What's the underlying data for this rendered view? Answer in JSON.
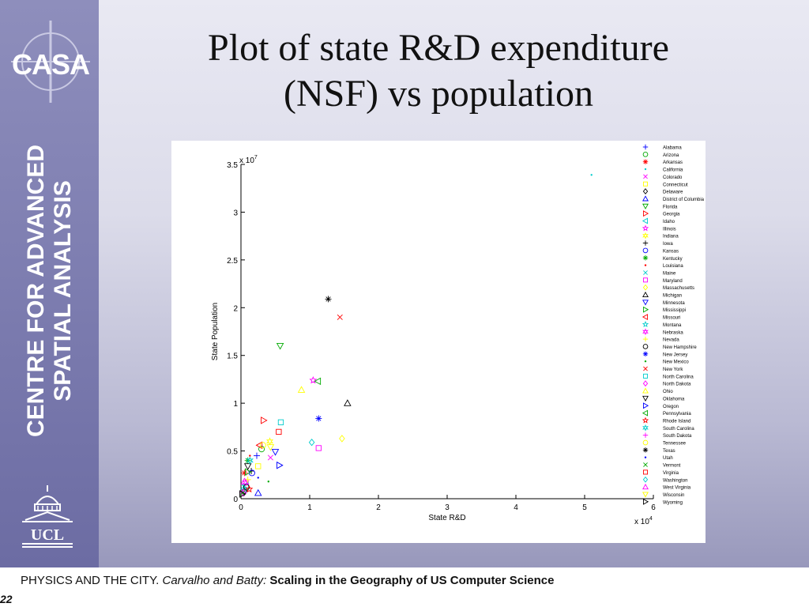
{
  "sidebar": {
    "logo_text": "CASA",
    "title_line1": "CENTRE FOR ADVANCED",
    "title_line2": "SPATIAL ANALYSIS",
    "ucl_logo_text": "UCL"
  },
  "slide": {
    "title_line1": "Plot of state R&D expenditure",
    "title_line2": "(NSF) vs population"
  },
  "footer": {
    "part1": "PHYSICS AND THE CITY.",
    "part2": "Carvalho and Batty:",
    "part3": "Scaling in the Geography of US Computer Science",
    "page_number": "22"
  },
  "chart_data": {
    "type": "scatter",
    "xlabel": "State R&D",
    "ylabel": "State Population",
    "x_multiplier": "x 10^4",
    "y_multiplier": "x 10^7",
    "xlim": [
      0,
      6
    ],
    "ylim": [
      0,
      3.5
    ],
    "x_ticks": [
      0,
      1,
      2,
      3,
      4,
      5,
      6
    ],
    "y_ticks": [
      0,
      0.5,
      1,
      1.5,
      2,
      2.5,
      3,
      3.5
    ],
    "legend_position": "right",
    "series": [
      {
        "name": "Alabama",
        "marker": "plus",
        "color": "#0000ff",
        "x": 0.23,
        "y": 0.45
      },
      {
        "name": "Arizona",
        "marker": "circle",
        "color": "#00aa00",
        "x": 0.3,
        "y": 0.52
      },
      {
        "name": "Arkansas",
        "marker": "star",
        "color": "#ff0000",
        "x": 0.05,
        "y": 0.27
      },
      {
        "name": "California",
        "marker": "dot",
        "color": "#00cccc",
        "x": 5.1,
        "y": 3.39
      },
      {
        "name": "Colorado",
        "marker": "x",
        "color": "#ff00ff",
        "x": 0.43,
        "y": 0.43
      },
      {
        "name": "Connecticut",
        "marker": "square",
        "color": "#ffff00",
        "x": 0.25,
        "y": 0.34
      },
      {
        "name": "Delaware",
        "marker": "diamond",
        "color": "#000000",
        "x": 0.05,
        "y": 0.08
      },
      {
        "name": "District of Columbia",
        "marker": "tri-up",
        "color": "#0000ff",
        "x": 0.25,
        "y": 0.06
      },
      {
        "name": "Florida",
        "marker": "tri-down",
        "color": "#00aa00",
        "x": 0.57,
        "y": 1.6
      },
      {
        "name": "Georgia",
        "marker": "tri-right",
        "color": "#ff0000",
        "x": 0.33,
        "y": 0.82
      },
      {
        "name": "Idaho",
        "marker": "tri-left",
        "color": "#00cccc",
        "x": 0.07,
        "y": 0.14
      },
      {
        "name": "Illinois",
        "marker": "pentagram",
        "color": "#ff00ff",
        "x": 1.05,
        "y": 1.24
      },
      {
        "name": "Indiana",
        "marker": "hexagram",
        "color": "#ffff00",
        "x": 0.42,
        "y": 0.6
      },
      {
        "name": "Iowa",
        "marker": "plus",
        "color": "#000000",
        "x": 0.15,
        "y": 0.29
      },
      {
        "name": "Kansas",
        "marker": "circle",
        "color": "#0000ff",
        "x": 0.16,
        "y": 0.27
      },
      {
        "name": "Kentucky",
        "marker": "star",
        "color": "#00aa00",
        "x": 0.1,
        "y": 0.4
      },
      {
        "name": "Louisiana",
        "marker": "dot",
        "color": "#ff0000",
        "x": 0.13,
        "y": 0.45
      },
      {
        "name": "Maine",
        "marker": "x",
        "color": "#00cccc",
        "x": 0.04,
        "y": 0.13
      },
      {
        "name": "Maryland",
        "marker": "square",
        "color": "#ff00ff",
        "x": 1.13,
        "y": 0.53
      },
      {
        "name": "Massachusetts",
        "marker": "diamond",
        "color": "#ffff00",
        "x": 1.47,
        "y": 0.63
      },
      {
        "name": "Michigan",
        "marker": "tri-up",
        "color": "#000000",
        "x": 1.55,
        "y": 1.0
      },
      {
        "name": "Minnesota",
        "marker": "tri-down",
        "color": "#0000ff",
        "x": 0.5,
        "y": 0.49
      },
      {
        "name": "Mississippi",
        "marker": "tri-right",
        "color": "#00aa00",
        "x": 0.1,
        "y": 0.28
      },
      {
        "name": "Missouri",
        "marker": "tri-left",
        "color": "#ff0000",
        "x": 0.27,
        "y": 0.56
      },
      {
        "name": "Montana",
        "marker": "pentagram",
        "color": "#00cccc",
        "x": 0.05,
        "y": 0.09
      },
      {
        "name": "Nebraska",
        "marker": "hexagram",
        "color": "#ff00ff",
        "x": 0.07,
        "y": 0.17
      },
      {
        "name": "Nevada",
        "marker": "plus",
        "color": "#ffff00",
        "x": 0.1,
        "y": 0.2
      },
      {
        "name": "New Hampshire",
        "marker": "circle",
        "color": "#000000",
        "x": 0.08,
        "y": 0.12
      },
      {
        "name": "New Jersey",
        "marker": "star",
        "color": "#0000ff",
        "x": 1.13,
        "y": 0.84
      },
      {
        "name": "New Mexico",
        "marker": "dot",
        "color": "#00aa00",
        "x": 0.4,
        "y": 0.18
      },
      {
        "name": "New York",
        "marker": "x",
        "color": "#ff0000",
        "x": 1.44,
        "y": 1.9
      },
      {
        "name": "North Carolina",
        "marker": "square",
        "color": "#00cccc",
        "x": 0.58,
        "y": 0.8
      },
      {
        "name": "North Dakota",
        "marker": "diamond",
        "color": "#ff00ff",
        "x": 0.04,
        "y": 0.06
      },
      {
        "name": "Ohio",
        "marker": "tri-up",
        "color": "#ffff00",
        "x": 0.88,
        "y": 1.14
      },
      {
        "name": "Oklahoma",
        "marker": "tri-down",
        "color": "#000000",
        "x": 0.1,
        "y": 0.34
      },
      {
        "name": "Oregon",
        "marker": "tri-right",
        "color": "#0000ff",
        "x": 0.56,
        "y": 0.35
      },
      {
        "name": "Pennsylvania",
        "marker": "tri-left",
        "color": "#00aa00",
        "x": 1.12,
        "y": 1.23
      },
      {
        "name": "Rhode Island",
        "marker": "pentagram",
        "color": "#ff0000",
        "x": 0.12,
        "y": 0.1
      },
      {
        "name": "South Carolina",
        "marker": "hexagram",
        "color": "#00cccc",
        "x": 0.13,
        "y": 0.4
      },
      {
        "name": "South Dakota",
        "marker": "plus",
        "color": "#ff00ff",
        "x": 0.02,
        "y": 0.07
      },
      {
        "name": "Tennessee",
        "marker": "circle",
        "color": "#ffff00",
        "x": 0.32,
        "y": 0.56
      },
      {
        "name": "Texas",
        "marker": "star",
        "color": "#000000",
        "x": 1.27,
        "y": 2.09
      },
      {
        "name": "Utah",
        "marker": "dot",
        "color": "#0000ff",
        "x": 0.25,
        "y": 0.22
      },
      {
        "name": "Vermont",
        "marker": "x",
        "color": "#00aa00",
        "x": 0.02,
        "y": 0.06
      },
      {
        "name": "Virginia",
        "marker": "square",
        "color": "#ff0000",
        "x": 0.55,
        "y": 0.7
      },
      {
        "name": "Washington",
        "marker": "diamond",
        "color": "#00cccc",
        "x": 1.03,
        "y": 0.59
      },
      {
        "name": "West Virginia",
        "marker": "tri-up",
        "color": "#ff00ff",
        "x": 0.05,
        "y": 0.18
      },
      {
        "name": "Wisconsin",
        "marker": "tri-down",
        "color": "#ffff00",
        "x": 0.43,
        "y": 0.54
      },
      {
        "name": "Wyoming",
        "marker": "tri-right",
        "color": "#000000",
        "x": 0.02,
        "y": 0.05
      }
    ]
  }
}
